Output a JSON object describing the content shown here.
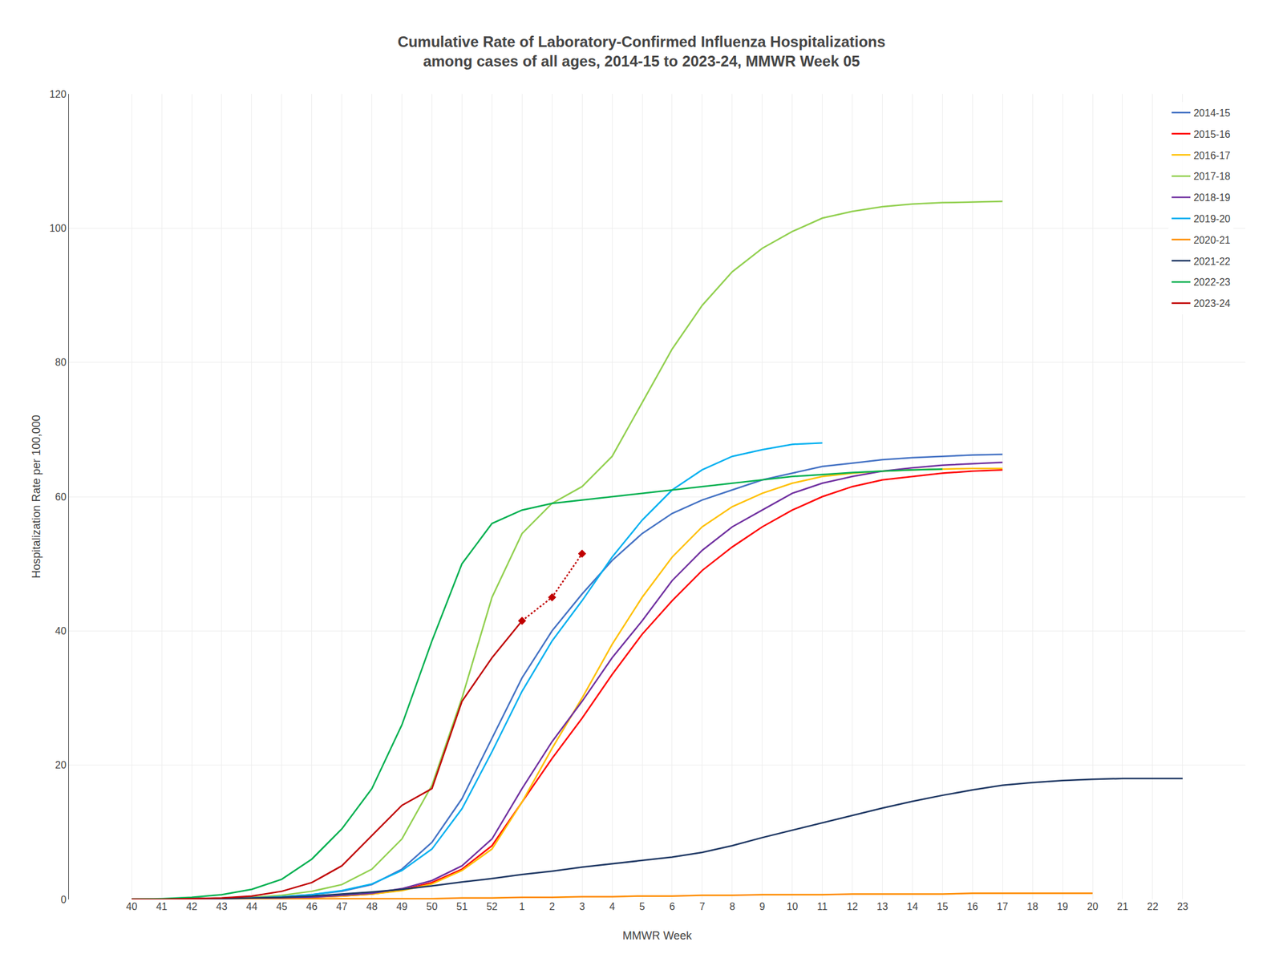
{
  "chart_data": {
    "type": "line",
    "title": "Cumulative Rate of Laboratory-Confirmed Influenza Hospitalizations",
    "subtitle": "among cases of all ages, 2014-15 to 2023-24, MMWR Week 05",
    "x_label": "MMWR Week",
    "y_label": "Hospitalization Rate per 100,000",
    "categories": [
      "40",
      "41",
      "42",
      "43",
      "44",
      "45",
      "46",
      "47",
      "48",
      "49",
      "50",
      "51",
      "52",
      "1",
      "2",
      "3",
      "4",
      "5",
      "6",
      "7",
      "8",
      "9",
      "10",
      "11",
      "12",
      "13",
      "14",
      "15",
      "16",
      "17",
      "18",
      "19",
      "20",
      "21",
      "22",
      "23"
    ],
    "ylim": [
      0,
      120
    ],
    "yticks": [
      0,
      20,
      40,
      60,
      80,
      100,
      120
    ],
    "grid": true,
    "legend": "upper right",
    "series": [
      {
        "name": "2014-15",
        "color": "#4472C4",
        "line_style": "solid",
        "values": [
          0.0,
          0.0,
          0.1,
          0.1,
          0.2,
          0.4,
          0.7,
          1.2,
          2.2,
          4.5,
          8.5,
          15.0,
          24.0,
          33.0,
          40.0,
          45.5,
          50.5,
          54.5,
          57.5,
          59.5,
          61.0,
          62.5,
          63.5,
          64.5,
          65.0,
          65.5,
          65.8,
          66.0,
          66.2,
          66.3,
          null,
          null,
          null,
          null,
          null,
          null
        ]
      },
      {
        "name": "2015-16",
        "color": "#FF0000",
        "line_style": "solid",
        "values": [
          0.0,
          0.0,
          0.0,
          0.1,
          0.1,
          0.2,
          0.3,
          0.5,
          0.8,
          1.4,
          2.5,
          4.5,
          8.0,
          14.5,
          21.0,
          27.0,
          33.5,
          39.5,
          44.5,
          49.0,
          52.5,
          55.5,
          58.0,
          60.0,
          61.5,
          62.5,
          63.0,
          63.5,
          63.8,
          64.0,
          null,
          null,
          null,
          null,
          null,
          null
        ]
      },
      {
        "name": "2016-17",
        "color": "#FFC000",
        "line_style": "solid",
        "values": [
          0.0,
          0.0,
          0.0,
          0.1,
          0.1,
          0.2,
          0.3,
          0.5,
          0.8,
          1.3,
          2.3,
          4.3,
          7.5,
          14.5,
          22.5,
          30.0,
          38.0,
          45.0,
          51.0,
          55.5,
          58.5,
          60.5,
          62.0,
          63.0,
          63.5,
          63.8,
          64.0,
          64.1,
          64.2,
          64.2,
          null,
          null,
          null,
          null,
          null,
          null
        ]
      },
      {
        "name": "2017-18",
        "color": "#92D050",
        "line_style": "solid",
        "values": [
          0.0,
          0.0,
          0.1,
          0.1,
          0.3,
          0.6,
          1.2,
          2.2,
          4.5,
          9.0,
          17.0,
          30.0,
          45.0,
          54.5,
          59.0,
          61.5,
          66.0,
          74.0,
          82.0,
          88.5,
          93.5,
          97.0,
          99.5,
          101.5,
          102.5,
          103.2,
          103.6,
          103.8,
          103.9,
          104.0,
          null,
          null,
          null,
          null,
          null,
          null
        ]
      },
      {
        "name": "2018-19",
        "color": "#7030A0",
        "line_style": "solid",
        "values": [
          0.0,
          0.0,
          0.0,
          0.1,
          0.1,
          0.2,
          0.3,
          0.6,
          0.9,
          1.6,
          2.8,
          5.0,
          9.0,
          16.5,
          23.5,
          29.5,
          36.0,
          41.5,
          47.5,
          52.0,
          55.5,
          58.0,
          60.5,
          62.0,
          63.0,
          63.8,
          64.3,
          64.7,
          64.9,
          65.1,
          null,
          null,
          null,
          null,
          null,
          null
        ]
      },
      {
        "name": "2019-20",
        "color": "#00B0F0",
        "line_style": "solid",
        "values": [
          0.0,
          0.0,
          0.1,
          0.1,
          0.2,
          0.4,
          0.7,
          1.3,
          2.3,
          4.3,
          7.5,
          13.5,
          22.0,
          31.0,
          38.5,
          44.5,
          51.0,
          56.5,
          61.0,
          64.0,
          66.0,
          67.0,
          67.8,
          68.0,
          null,
          null,
          null,
          null,
          null,
          null,
          null,
          null,
          null,
          null,
          null,
          null
        ]
      },
      {
        "name": "2020-21",
        "color": "#FF8C00",
        "line_style": "solid",
        "values": [
          0.0,
          0.0,
          0.0,
          0.0,
          0.0,
          0.0,
          0.1,
          0.1,
          0.1,
          0.1,
          0.1,
          0.2,
          0.2,
          0.3,
          0.3,
          0.4,
          0.4,
          0.5,
          0.5,
          0.6,
          0.6,
          0.7,
          0.7,
          0.7,
          0.8,
          0.8,
          0.8,
          0.8,
          0.9,
          0.9,
          0.9,
          0.9,
          0.9,
          null,
          null,
          null
        ]
      },
      {
        "name": "2021-22",
        "color": "#1F3864",
        "line_style": "solid",
        "values": [
          0.0,
          0.0,
          0.1,
          0.1,
          0.2,
          0.3,
          0.5,
          0.8,
          1.1,
          1.5,
          2.0,
          2.6,
          3.1,
          3.7,
          4.2,
          4.8,
          5.3,
          5.8,
          6.3,
          7.0,
          8.0,
          9.2,
          10.3,
          11.4,
          12.5,
          13.6,
          14.6,
          15.5,
          16.3,
          17.0,
          17.4,
          17.7,
          17.9,
          18.0,
          18.0,
          18.0
        ]
      },
      {
        "name": "2022-23",
        "color": "#00B050",
        "line_style": "solid",
        "values": [
          0.0,
          0.1,
          0.3,
          0.7,
          1.5,
          3.0,
          6.0,
          10.5,
          16.5,
          26.0,
          38.5,
          50.0,
          56.0,
          58.0,
          59.0,
          59.5,
          60.0,
          60.5,
          61.0,
          61.5,
          62.0,
          62.5,
          63.0,
          63.3,
          63.6,
          63.8,
          64.0,
          64.1,
          null,
          null,
          null,
          null,
          null,
          null,
          null,
          null
        ]
      },
      {
        "name": "2023-24",
        "color": "#C00000",
        "line_style": "solid",
        "values": [
          0.0,
          0.0,
          0.1,
          0.2,
          0.5,
          1.2,
          2.5,
          5.0,
          9.5,
          14.0,
          16.5,
          29.5,
          36.0,
          41.5,
          null,
          null,
          null,
          null,
          null,
          null,
          null,
          null,
          null,
          null,
          null,
          null,
          null,
          null,
          null,
          null,
          null,
          null,
          null,
          null,
          null,
          null
        ]
      },
      {
        "name": "2023-24",
        "color": "#C00000",
        "line_style": "dotted",
        "marker": "diamond",
        "values": [
          null,
          null,
          null,
          null,
          null,
          null,
          null,
          null,
          null,
          null,
          null,
          null,
          null,
          41.5,
          45.0,
          51.5,
          null,
          null,
          null,
          null,
          null,
          null,
          null,
          null,
          null,
          null,
          null,
          null,
          null,
          null,
          null,
          null,
          null,
          null,
          null,
          null
        ]
      }
    ]
  }
}
